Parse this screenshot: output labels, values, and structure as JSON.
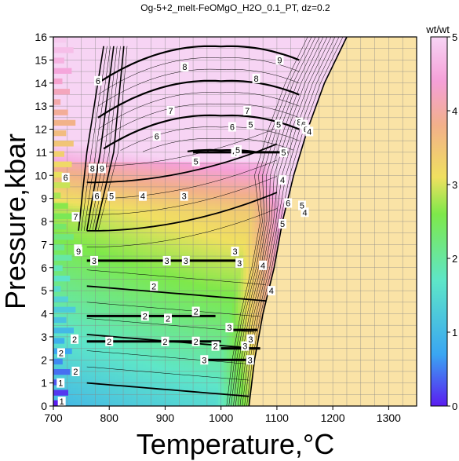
{
  "chart_data": {
    "type": "heatmap",
    "title": "Og-5+2_melt-FeOMgO_H2O_0.1_PT, dz=0.2",
    "xlabel": "Temperature,°C",
    "ylabel": "Pressure,kbar",
    "xlim": [
      700,
      1350
    ],
    "ylim": [
      0,
      16
    ],
    "x_ticks": [
      700,
      800,
      900,
      1000,
      1100,
      1200,
      1300
    ],
    "y_ticks": [
      0,
      1,
      2,
      3,
      4,
      5,
      6,
      7,
      8,
      9,
      10,
      11,
      12,
      13,
      14,
      15,
      16
    ],
    "grid": true,
    "colorbar": {
      "unit": "wt/wt",
      "range": [
        0,
        5
      ],
      "ticks": [
        0,
        1,
        2,
        3,
        4,
        5
      ],
      "colors": [
        "#5a1cf0",
        "#3aa6f2",
        "#5ee6c8",
        "#7ee84a",
        "#f0e060",
        "#f2b08a",
        "#f5a0d8",
        "#f7d4f4"
      ]
    },
    "melt_free_color": "#fae3a6",
    "solidus_T_at_P": [
      [
        1050,
        0
      ],
      [
        1060,
        2
      ],
      [
        1075,
        4
      ],
      [
        1095,
        6
      ],
      [
        1110,
        8
      ],
      [
        1130,
        10
      ],
      [
        1155,
        12
      ],
      [
        1185,
        14
      ],
      [
        1225,
        16
      ]
    ],
    "contour_labels": [
      {
        "v": "1",
        "t": 715,
        "p": 0.2
      },
      {
        "v": "1",
        "t": 713,
        "p": 1.0
      },
      {
        "v": "2",
        "t": 714,
        "p": 2.3
      },
      {
        "v": "2",
        "t": 740,
        "p": 1.5
      },
      {
        "v": "2",
        "t": 738,
        "p": 2.9
      },
      {
        "v": "2",
        "t": 800,
        "p": 2.8
      },
      {
        "v": "2",
        "t": 900,
        "p": 2.8
      },
      {
        "v": "2",
        "t": 955,
        "p": 2.8
      },
      {
        "v": "2",
        "t": 990,
        "p": 2.6
      },
      {
        "v": "2",
        "t": 864,
        "p": 3.9
      },
      {
        "v": "2",
        "t": 905,
        "p": 3.8
      },
      {
        "v": "2",
        "t": 880,
        "p": 5.2
      },
      {
        "v": "2",
        "t": 955,
        "p": 4.1
      },
      {
        "v": "3",
        "t": 1043,
        "p": 2.6
      },
      {
        "v": "3",
        "t": 1053,
        "p": 2.9
      },
      {
        "v": "3",
        "t": 1015,
        "p": 3.4
      },
      {
        "v": "3",
        "t": 1052,
        "p": 2.0
      },
      {
        "v": "3",
        "t": 970,
        "p": 2.0
      },
      {
        "v": "3",
        "t": 1033,
        "p": 6.2
      },
      {
        "v": "3",
        "t": 1025,
        "p": 6.7
      },
      {
        "v": "3",
        "t": 937,
        "p": 6.3
      },
      {
        "v": "3",
        "t": 903,
        "p": 6.3
      },
      {
        "v": "3",
        "t": 773,
        "p": 6.3
      },
      {
        "v": "3",
        "t": 934,
        "p": 9.1
      },
      {
        "v": "4",
        "t": 1075,
        "p": 6.1
      },
      {
        "v": "4",
        "t": 1090,
        "p": 5.0
      },
      {
        "v": "4",
        "t": 1150,
        "p": 8.4
      },
      {
        "v": "4",
        "t": 1110,
        "p": 9.8
      },
      {
        "v": "4",
        "t": 860,
        "p": 9.1
      },
      {
        "v": "4",
        "t": 1025,
        "p": 11.0
      },
      {
        "v": "5",
        "t": 1110,
        "p": 7.9
      },
      {
        "v": "5",
        "t": 1112,
        "p": 11.0
      },
      {
        "v": "5",
        "t": 1030,
        "p": 11.1
      },
      {
        "v": "5",
        "t": 955,
        "p": 10.6
      },
      {
        "v": "5",
        "t": 804,
        "p": 9.1
      },
      {
        "v": "5",
        "t": 1145,
        "p": 8.7
      },
      {
        "v": "5",
        "t": 1103,
        "p": 12.2
      },
      {
        "v": "5",
        "t": 1053,
        "p": 12.2
      },
      {
        "v": "6",
        "t": 1120,
        "p": 8.8
      },
      {
        "v": "6",
        "t": 1020,
        "p": 12.1
      },
      {
        "v": "6",
        "t": 885,
        "p": 11.7
      },
      {
        "v": "6",
        "t": 778,
        "p": 9.1
      },
      {
        "v": "6",
        "t": 744,
        "p": 6.8
      },
      {
        "v": "6",
        "t": 722,
        "p": 9.9
      },
      {
        "v": "6",
        "t": 780,
        "p": 14.1
      },
      {
        "v": "7",
        "t": 1047,
        "p": 12.8
      },
      {
        "v": "7",
        "t": 910,
        "p": 12.8
      },
      {
        "v": "7",
        "t": 740,
        "p": 8.2
      },
      {
        "v": "8",
        "t": 1063,
        "p": 14.2
      },
      {
        "v": "8",
        "t": 935,
        "p": 14.7
      },
      {
        "v": "8",
        "t": 770,
        "p": 10.3
      },
      {
        "v": "8",
        "t": 1140,
        "p": 12.3
      },
      {
        "v": "9",
        "t": 1105,
        "p": 15.0
      },
      {
        "v": "9",
        "t": 787,
        "p": 10.3
      },
      {
        "v": "9",
        "t": 745,
        "p": 6.7
      },
      {
        "v": "6",
        "t": 1148,
        "p": 12.2
      },
      {
        "v": "6",
        "t": 1152,
        "p": 12.0
      },
      {
        "v": "4",
        "t": 1158,
        "p": 11.9
      }
    ]
  }
}
